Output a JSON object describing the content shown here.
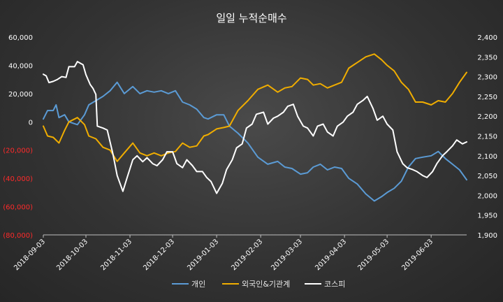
{
  "chart_data": {
    "type": "line",
    "title": "일일 누적순매수",
    "grid": false,
    "legend_position": "bottom",
    "y_left": {
      "ylim": [
        -80000,
        60000
      ],
      "ticks": [
        60000,
        40000,
        20000,
        0,
        -20000,
        -40000,
        -60000,
        -80000
      ],
      "tick_labels": [
        "60,000",
        "40,000",
        "20,000",
        "0",
        "(20,000)",
        "(40,000)",
        "(60,000)",
        "(80,000)"
      ],
      "negative_color": "#ff2a2a",
      "positive_color": "#ffffff"
    },
    "y_right": {
      "ylim": [
        1900,
        2400
      ],
      "ticks": [
        2400,
        2350,
        2300,
        2250,
        2200,
        2150,
        2100,
        2050,
        2000,
        1950,
        1900
      ],
      "tick_labels": [
        "2,400",
        "2,350",
        "2,300",
        "2,250",
        "2,200",
        "2,150",
        "2,100",
        "2,050",
        "2,000",
        "1,950",
        "1,900"
      ]
    },
    "x_ticks": [
      "2018-09-03",
      "2018-10-03",
      "2018-11-03",
      "2018-12-03",
      "2019-01-03",
      "2019-02-03",
      "2019-03-03",
      "2019-04-03",
      "2019-05-03",
      "2019-06-03"
    ],
    "x_start": "2018-09-03",
    "x_end": "2019-06-28",
    "series": [
      {
        "name": "개인",
        "axis": "left",
        "color": "#5b9bd5",
        "points": [
          [
            "2018-09-03",
            2000
          ],
          [
            "2018-09-06",
            8000
          ],
          [
            "2018-09-10",
            8000
          ],
          [
            "2018-09-12",
            12000
          ],
          [
            "2018-09-14",
            3000
          ],
          [
            "2018-09-18",
            5000
          ],
          [
            "2018-09-21",
            0
          ],
          [
            "2018-09-27",
            -2000
          ],
          [
            "2018-10-02",
            5000
          ],
          [
            "2018-10-05",
            12000
          ],
          [
            "2018-10-10",
            15000
          ],
          [
            "2018-10-15",
            18000
          ],
          [
            "2018-10-20",
            22000
          ],
          [
            "2018-10-25",
            28000
          ],
          [
            "2018-10-30",
            20000
          ],
          [
            "2018-11-05",
            25000
          ],
          [
            "2018-11-10",
            20000
          ],
          [
            "2018-11-15",
            22000
          ],
          [
            "2018-11-20",
            21000
          ],
          [
            "2018-11-25",
            22000
          ],
          [
            "2018-11-30",
            20000
          ],
          [
            "2018-12-05",
            22000
          ],
          [
            "2018-12-10",
            14000
          ],
          [
            "2018-12-15",
            12000
          ],
          [
            "2018-12-20",
            9000
          ],
          [
            "2018-12-25",
            3000
          ],
          [
            "2018-12-28",
            2000
          ],
          [
            "2019-01-03",
            5000
          ],
          [
            "2019-01-08",
            5000
          ],
          [
            "2019-01-12",
            -3000
          ],
          [
            "2019-01-18",
            -8000
          ],
          [
            "2019-01-25",
            -15000
          ],
          [
            "2019-02-01",
            -25000
          ],
          [
            "2019-02-08",
            -30000
          ],
          [
            "2019-02-15",
            -28000
          ],
          [
            "2019-02-20",
            -32000
          ],
          [
            "2019-02-25",
            -33000
          ],
          [
            "2019-03-03",
            -37000
          ],
          [
            "2019-03-08",
            -36000
          ],
          [
            "2019-03-12",
            -32000
          ],
          [
            "2019-03-17",
            -30000
          ],
          [
            "2019-03-22",
            -34000
          ],
          [
            "2019-03-27",
            -32000
          ],
          [
            "2019-04-01",
            -33000
          ],
          [
            "2019-04-06",
            -40000
          ],
          [
            "2019-04-12",
            -44000
          ],
          [
            "2019-04-18",
            -51000
          ],
          [
            "2019-04-24",
            -56000
          ],
          [
            "2019-04-29",
            -53000
          ],
          [
            "2019-05-03",
            -50000
          ],
          [
            "2019-05-08",
            -47000
          ],
          [
            "2019-05-13",
            -42000
          ],
          [
            "2019-05-18",
            -32000
          ],
          [
            "2019-05-23",
            -26000
          ],
          [
            "2019-05-28",
            -25000
          ],
          [
            "2019-06-03",
            -24000
          ],
          [
            "2019-06-08",
            -21000
          ],
          [
            "2019-06-13",
            -26000
          ],
          [
            "2019-06-18",
            -30000
          ],
          [
            "2019-06-23",
            -34000
          ],
          [
            "2019-06-28",
            -41000
          ]
        ]
      },
      {
        "name": "외국인&기관계",
        "axis": "left",
        "color": "#f0ad00",
        "points": [
          [
            "2018-09-03",
            -3000
          ],
          [
            "2018-09-06",
            -10000
          ],
          [
            "2018-09-10",
            -11000
          ],
          [
            "2018-09-14",
            -15000
          ],
          [
            "2018-09-18",
            -6000
          ],
          [
            "2018-09-21",
            0
          ],
          [
            "2018-09-27",
            3000
          ],
          [
            "2018-10-02",
            -2000
          ],
          [
            "2018-10-05",
            -10000
          ],
          [
            "2018-10-10",
            -12000
          ],
          [
            "2018-10-15",
            -18000
          ],
          [
            "2018-10-20",
            -20000
          ],
          [
            "2018-10-25",
            -28000
          ],
          [
            "2018-10-30",
            -22000
          ],
          [
            "2018-11-05",
            -15000
          ],
          [
            "2018-11-10",
            -22000
          ],
          [
            "2018-11-15",
            -24000
          ],
          [
            "2018-11-20",
            -22000
          ],
          [
            "2018-11-25",
            -24000
          ],
          [
            "2018-11-30",
            -22000
          ],
          [
            "2018-12-05",
            -21000
          ],
          [
            "2018-12-10",
            -15000
          ],
          [
            "2018-12-15",
            -18000
          ],
          [
            "2018-12-20",
            -17000
          ],
          [
            "2018-12-25",
            -10000
          ],
          [
            "2018-12-28",
            -9000
          ],
          [
            "2019-01-03",
            -5000
          ],
          [
            "2019-01-08",
            -4000
          ],
          [
            "2019-01-12",
            -3000
          ],
          [
            "2019-01-18",
            8000
          ],
          [
            "2019-01-25",
            15000
          ],
          [
            "2019-02-01",
            23000
          ],
          [
            "2019-02-08",
            26000
          ],
          [
            "2019-02-15",
            21000
          ],
          [
            "2019-02-20",
            24000
          ],
          [
            "2019-02-25",
            25000
          ],
          [
            "2019-03-03",
            31000
          ],
          [
            "2019-03-08",
            30000
          ],
          [
            "2019-03-12",
            26000
          ],
          [
            "2019-03-17",
            27000
          ],
          [
            "2019-03-22",
            24000
          ],
          [
            "2019-03-27",
            26000
          ],
          [
            "2019-04-01",
            28000
          ],
          [
            "2019-04-06",
            38000
          ],
          [
            "2019-04-12",
            42000
          ],
          [
            "2019-04-18",
            46000
          ],
          [
            "2019-04-24",
            48000
          ],
          [
            "2019-04-29",
            44000
          ],
          [
            "2019-05-03",
            40000
          ],
          [
            "2019-05-08",
            36000
          ],
          [
            "2019-05-13",
            28000
          ],
          [
            "2019-05-18",
            23000
          ],
          [
            "2019-05-23",
            14000
          ],
          [
            "2019-05-28",
            14000
          ],
          [
            "2019-06-03",
            12000
          ],
          [
            "2019-06-08",
            15000
          ],
          [
            "2019-06-13",
            14000
          ],
          [
            "2019-06-18",
            20000
          ],
          [
            "2019-06-23",
            28000
          ],
          [
            "2019-06-28",
            35000
          ]
        ]
      },
      {
        "name": "코스피",
        "axis": "right",
        "color": "#ffffff",
        "points": [
          [
            "2018-09-03",
            2306
          ],
          [
            "2018-09-05",
            2302
          ],
          [
            "2018-09-07",
            2285
          ],
          [
            "2018-09-10",
            2288
          ],
          [
            "2018-09-13",
            2293
          ],
          [
            "2018-09-16",
            2300
          ],
          [
            "2018-09-19",
            2298
          ],
          [
            "2018-09-21",
            2325
          ],
          [
            "2018-09-25",
            2325
          ],
          [
            "2018-09-27",
            2338
          ],
          [
            "2018-10-01",
            2330
          ],
          [
            "2018-10-03",
            2305
          ],
          [
            "2018-10-06",
            2280
          ],
          [
            "2018-10-08",
            2270
          ],
          [
            "2018-10-10",
            2255
          ],
          [
            "2018-10-11",
            2175
          ],
          [
            "2018-10-15",
            2170
          ],
          [
            "2018-10-18",
            2165
          ],
          [
            "2018-10-22",
            2105
          ],
          [
            "2018-10-25",
            2050
          ],
          [
            "2018-10-29",
            2010
          ],
          [
            "2018-11-01",
            2045
          ],
          [
            "2018-11-05",
            2090
          ],
          [
            "2018-11-08",
            2100
          ],
          [
            "2018-11-12",
            2085
          ],
          [
            "2018-11-15",
            2095
          ],
          [
            "2018-11-19",
            2080
          ],
          [
            "2018-11-22",
            2075
          ],
          [
            "2018-11-26",
            2090
          ],
          [
            "2018-11-29",
            2110
          ],
          [
            "2018-12-03",
            2110
          ],
          [
            "2018-12-06",
            2080
          ],
          [
            "2018-12-10",
            2070
          ],
          [
            "2018-12-13",
            2090
          ],
          [
            "2018-12-17",
            2075
          ],
          [
            "2018-12-20",
            2060
          ],
          [
            "2018-12-24",
            2060
          ],
          [
            "2018-12-27",
            2045
          ],
          [
            "2018-12-30",
            2035
          ],
          [
            "2019-01-03",
            2005
          ],
          [
            "2019-01-07",
            2030
          ],
          [
            "2019-01-10",
            2065
          ],
          [
            "2019-01-14",
            2090
          ],
          [
            "2019-01-17",
            2120
          ],
          [
            "2019-01-21",
            2130
          ],
          [
            "2019-01-24",
            2170
          ],
          [
            "2019-01-28",
            2180
          ],
          [
            "2019-01-31",
            2205
          ],
          [
            "2019-02-05",
            2210
          ],
          [
            "2019-02-08",
            2180
          ],
          [
            "2019-02-12",
            2195
          ],
          [
            "2019-02-15",
            2200
          ],
          [
            "2019-02-19",
            2210
          ],
          [
            "2019-02-22",
            2225
          ],
          [
            "2019-02-26",
            2230
          ],
          [
            "2019-03-01",
            2200
          ],
          [
            "2019-03-05",
            2175
          ],
          [
            "2019-03-08",
            2170
          ],
          [
            "2019-03-12",
            2150
          ],
          [
            "2019-03-15",
            2175
          ],
          [
            "2019-03-19",
            2180
          ],
          [
            "2019-03-22",
            2160
          ],
          [
            "2019-03-26",
            2150
          ],
          [
            "2019-03-29",
            2175
          ],
          [
            "2019-04-02",
            2185
          ],
          [
            "2019-04-05",
            2200
          ],
          [
            "2019-04-09",
            2210
          ],
          [
            "2019-04-12",
            2230
          ],
          [
            "2019-04-16",
            2240
          ],
          [
            "2019-04-19",
            2250
          ],
          [
            "2019-04-23",
            2220
          ],
          [
            "2019-04-26",
            2190
          ],
          [
            "2019-04-30",
            2200
          ],
          [
            "2019-05-03",
            2180
          ],
          [
            "2019-05-07",
            2165
          ],
          [
            "2019-05-10",
            2110
          ],
          [
            "2019-05-14",
            2080
          ],
          [
            "2019-05-17",
            2070
          ],
          [
            "2019-05-21",
            2065
          ],
          [
            "2019-05-24",
            2060
          ],
          [
            "2019-05-28",
            2050
          ],
          [
            "2019-05-31",
            2045
          ],
          [
            "2019-06-04",
            2060
          ],
          [
            "2019-06-07",
            2080
          ],
          [
            "2019-06-11",
            2100
          ],
          [
            "2019-06-14",
            2110
          ],
          [
            "2019-06-18",
            2125
          ],
          [
            "2019-06-21",
            2140
          ],
          [
            "2019-06-25",
            2130
          ],
          [
            "2019-06-28",
            2135
          ]
        ]
      }
    ]
  }
}
